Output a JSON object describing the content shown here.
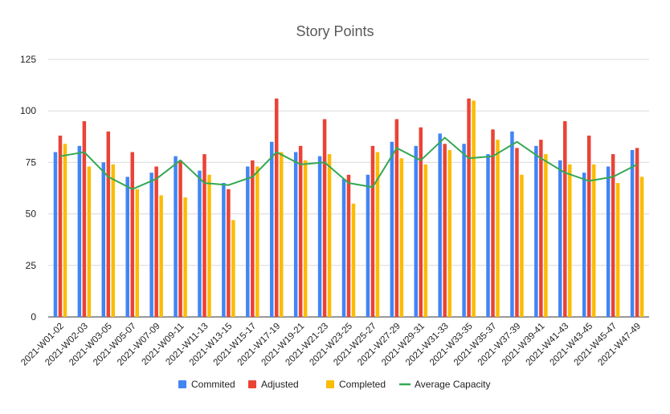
{
  "chart_data": {
    "type": "bar",
    "title": "Story Points",
    "xlabel": "",
    "ylabel": "",
    "ylim": [
      0,
      125
    ],
    "yticks": [
      0,
      25,
      50,
      75,
      100,
      125
    ],
    "grid": true,
    "legend_position": "bottom",
    "categories": [
      "2021-W01-02",
      "2021-W02-03",
      "2021-W03-05",
      "2021-W05-07",
      "2021-W07-09",
      "2021-W09-11",
      "2021-W11-13",
      "2021-W13-15",
      "2021-W15-17",
      "2021-W17-19",
      "2021-W19-21",
      "2021-W21-23",
      "2021-W23-25",
      "2021-W25-27",
      "2021-W27-29",
      "2021-W29-31",
      "2021-W31-33",
      "2021-W33-35",
      "2021-W35-37",
      "2021-W37-39",
      "2021-W39-41",
      "2021-W41-43",
      "2021-W43-45",
      "2021-W45-47",
      "2021-W47-49"
    ],
    "series": [
      {
        "name": "Commited",
        "type": "bar",
        "color": "#4285f4",
        "values": [
          80,
          83,
          75,
          68,
          70,
          78,
          71,
          65,
          73,
          85,
          80,
          78,
          67,
          69,
          85,
          83,
          89,
          84,
          79,
          90,
          83,
          76,
          70,
          73,
          81
        ]
      },
      {
        "name": "Adjusted",
        "type": "bar",
        "color": "#ea4335",
        "values": [
          88,
          95,
          90,
          80,
          73,
          76,
          79,
          62,
          76,
          106,
          83,
          96,
          69,
          83,
          96,
          92,
          84,
          106,
          91,
          82,
          86,
          95,
          88,
          79,
          82
        ]
      },
      {
        "name": "Completed",
        "type": "bar",
        "color": "#fbbc04",
        "values": [
          84,
          73,
          74,
          62,
          59,
          58,
          69,
          47,
          73,
          80,
          76,
          79,
          55,
          80,
          77,
          74,
          81,
          105,
          86,
          69,
          79,
          74,
          74,
          65,
          68
        ]
      },
      {
        "name": "Average Capacity",
        "type": "line",
        "color": "#34a853",
        "values": [
          78,
          80,
          68,
          62,
          67,
          76,
          65,
          64,
          68,
          80,
          74,
          75,
          65,
          63,
          82,
          76,
          87,
          77,
          78,
          85,
          77,
          70,
          66,
          68,
          74
        ]
      }
    ]
  }
}
